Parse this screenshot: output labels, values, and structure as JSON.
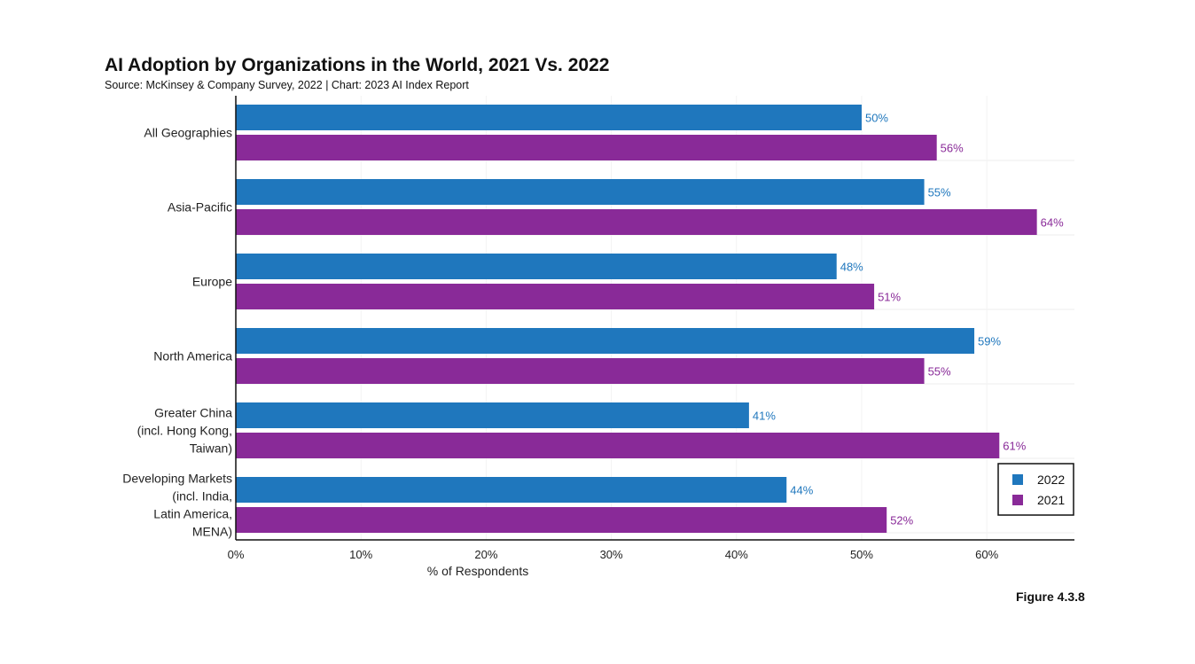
{
  "figure_label": "Figure 4.3.8",
  "chart_data": {
    "type": "bar",
    "orientation": "horizontal",
    "title": "AI Adoption by Organizations in the World, 2021 Vs. 2022",
    "subtitle": "Source: McKinsey & Company Survey, 2022 | Chart: 2023 AI Index Report",
    "categories": [
      [
        "All Geographies"
      ],
      [
        "Asia-Pacific"
      ],
      [
        "Europe"
      ],
      [
        "North America"
      ],
      [
        "Greater China",
        "(incl. Hong Kong,",
        "Taiwan)"
      ],
      [
        "Developing Markets",
        "(incl. India,",
        "Latin America,",
        "MENA)"
      ]
    ],
    "series": [
      {
        "name": "2022",
        "color": "#1f77bd",
        "values": [
          50,
          55,
          48,
          59,
          41,
          44
        ]
      },
      {
        "name": "2021",
        "color": "#892a98",
        "values": [
          56,
          64,
          51,
          55,
          61,
          52
        ]
      }
    ],
    "xlabel": "% of Respondents",
    "ylabel": "",
    "xlim": [
      0,
      67
    ],
    "xticks": [
      0,
      10,
      20,
      30,
      40,
      50,
      60
    ],
    "tick_suffix": "%",
    "grid": true,
    "legend_position": "bottom-right"
  }
}
